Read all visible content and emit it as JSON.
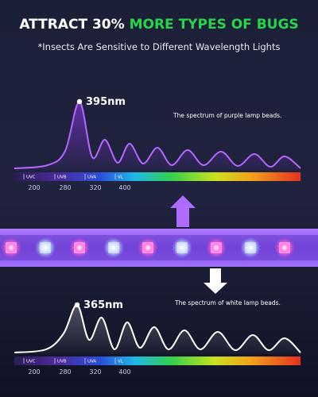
{
  "header": {
    "title_white": "ATTRACT 30%",
    "title_green": "MORE TYPES OF BUGS",
    "subtitle": "*Insects Are Sensitive to Different Wavelength Lights"
  },
  "spectra": [
    {
      "peak": "395nm",
      "caption": "The spectrum of purple lamp beads.",
      "bands": [
        "UVC",
        "UVB",
        "UVA",
        "VL"
      ],
      "ticks": [
        200,
        280,
        320,
        400
      ]
    },
    {
      "peak": "365nm",
      "caption": "The spectrum of white lamp beads.",
      "bands": [
        "UVC",
        "UVB",
        "UVA",
        "VL"
      ],
      "ticks": [
        200,
        280,
        320,
        400
      ]
    }
  ]
}
